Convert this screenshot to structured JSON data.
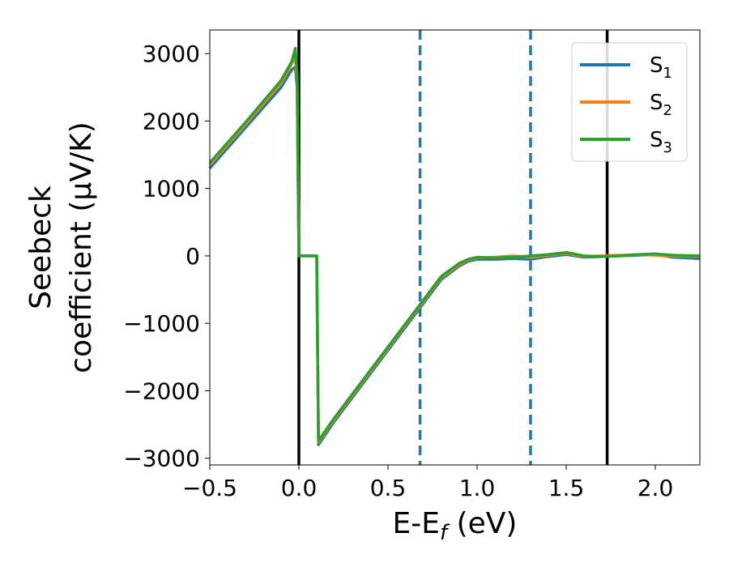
{
  "chart_data": {
    "type": "line",
    "xlabel": "E-E",
    "xlabel_sub": "f",
    "xlabel_unit": " (eV)",
    "ylabel_line1": "Seebeck",
    "ylabel_line2": "coefficient  (μV/K)",
    "xlim": [
      -0.5,
      2.25
    ],
    "ylim": [
      -3100,
      3350
    ],
    "xticks": [
      -0.5,
      0.0,
      0.5,
      1.0,
      1.5,
      2.0
    ],
    "xtick_labels": [
      "−0.5",
      "0.0",
      "0.5",
      "1.0",
      "1.5",
      "2.0"
    ],
    "yticks": [
      -3000,
      -2000,
      -1000,
      0,
      1000,
      2000,
      3000
    ],
    "ytick_labels": [
      "−3000",
      "−2000",
      "−1000",
      "0",
      "1000",
      "2000",
      "3000"
    ],
    "legend_position": "top-right",
    "vlines": [
      {
        "x": 0.0,
        "color": "#000000",
        "style": "solid"
      },
      {
        "x": 1.73,
        "color": "#000000",
        "style": "solid"
      },
      {
        "x": 0.68,
        "color": "#1f77b4",
        "style": "dashed"
      },
      {
        "x": 1.3,
        "color": "#1f77b4",
        "style": "dashed"
      }
    ],
    "series": [
      {
        "name": "S",
        "sub": "1",
        "color": "#1f77b4",
        "x": [
          -0.5,
          -0.3,
          -0.1,
          -0.04,
          -0.02,
          -0.01,
          0.0,
          0.05,
          0.1,
          0.11,
          0.2,
          0.4,
          0.6,
          0.8,
          0.9,
          0.95,
          1.0,
          1.1,
          1.2,
          1.3,
          1.4,
          1.5,
          1.6,
          1.7,
          1.8,
          1.9,
          2.0,
          2.1,
          2.25
        ],
        "y": [
          1300,
          1900,
          2500,
          2760,
          2800,
          2500,
          0,
          0,
          0,
          -2800,
          -2450,
          -1750,
          -1050,
          -350,
          -150,
          -80,
          -50,
          -50,
          -40,
          -50,
          -10,
          20,
          -20,
          -10,
          0,
          10,
          20,
          -20,
          -40
        ]
      },
      {
        "name": "S",
        "sub": "2",
        "color": "#ff7f0e",
        "x": [
          -0.5,
          -0.3,
          -0.1,
          -0.04,
          -0.02,
          -0.01,
          0.0,
          0.05,
          0.1,
          0.11,
          0.2,
          0.4,
          0.6,
          0.8,
          0.9,
          0.95,
          1.0,
          1.1,
          1.2,
          1.3,
          1.4,
          1.5,
          1.6,
          1.7,
          1.8,
          1.9,
          2.0,
          2.1,
          2.25
        ],
        "y": [
          1350,
          1950,
          2560,
          2850,
          2950,
          2600,
          0,
          0,
          0,
          -2760,
          -2420,
          -1720,
          -1020,
          -320,
          -130,
          -60,
          -30,
          -20,
          0,
          -20,
          10,
          40,
          -10,
          0,
          10,
          20,
          10,
          -5,
          -10
        ]
      },
      {
        "name": "S",
        "sub": "3",
        "color": "#2ca02c",
        "x": [
          -0.5,
          -0.3,
          -0.1,
          -0.04,
          -0.02,
          -0.01,
          0.0,
          0.05,
          0.1,
          0.11,
          0.2,
          0.4,
          0.6,
          0.8,
          0.9,
          0.95,
          1.0,
          1.1,
          1.2,
          1.3,
          1.4,
          1.5,
          1.6,
          1.7,
          1.8,
          1.9,
          2.0,
          2.1,
          2.25
        ],
        "y": [
          1380,
          1980,
          2600,
          2880,
          3080,
          2700,
          0,
          0,
          0,
          -2740,
          -2400,
          -1700,
          -1000,
          -300,
          -110,
          -50,
          -20,
          -30,
          -20,
          0,
          20,
          50,
          0,
          -10,
          0,
          20,
          30,
          10,
          0
        ]
      }
    ]
  }
}
